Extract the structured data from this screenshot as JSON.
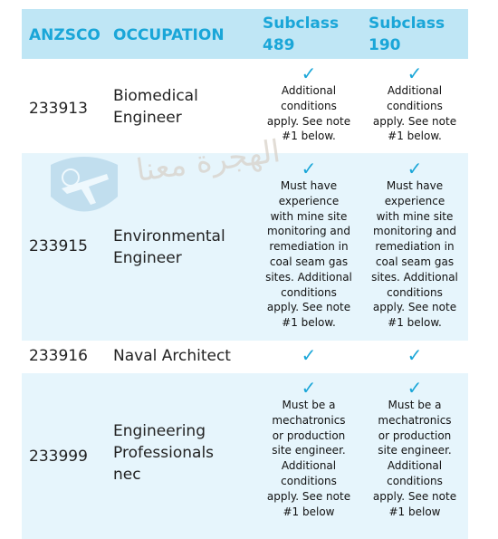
{
  "header": {
    "anzsco": "ANZSCO",
    "occupation": "OCCUPATION",
    "subclass_489_line1": "Subclass",
    "subclass_489_line2": "489",
    "subclass_190_line1": "Subclass",
    "subclass_190_line2": "190"
  },
  "tick_icon": "check-mark",
  "colors": {
    "accent": "#1aa6d8",
    "header_bg": "#bfe6f5",
    "stripe_bg": "#e6f5fc"
  },
  "rows": [
    {
      "code": "233913",
      "occupation_lines": [
        "Biomedical",
        "Engineer"
      ],
      "sub489": [
        "Additional",
        "conditions",
        "apply. See note",
        "#1 below."
      ],
      "sub190": [
        "Additional",
        "conditions",
        "apply. See note",
        "#1 below."
      ]
    },
    {
      "code": "233915",
      "occupation_lines": [
        "Environmental",
        "Engineer"
      ],
      "sub489": [
        "Must have",
        "experience",
        "with mine site",
        "monitoring and",
        "remediation in",
        "coal seam gas",
        "sites. Additional",
        "conditions",
        "apply. See note",
        "#1 below."
      ],
      "sub190": [
        "Must have",
        "experience",
        "with mine site",
        "monitoring and",
        "remediation in",
        "coal seam gas",
        "sites. Additional",
        "conditions",
        "apply. See note",
        "#1 below."
      ]
    },
    {
      "code": "233916",
      "occupation_lines": [
        "Naval Architect"
      ],
      "sub489": [],
      "sub190": []
    },
    {
      "code": "233999",
      "occupation_lines": [
        "Engineering",
        "Professionals",
        "nec"
      ],
      "sub489": [
        "Must be a",
        "mechatronics",
        "or production",
        "site engineer.",
        "Additional",
        "conditions",
        "apply. See note",
        "#1 below"
      ],
      "sub190": [
        "Must be a",
        "mechatronics",
        "or production",
        "site engineer.",
        "Additional",
        "conditions",
        "apply. See note",
        "#1 below"
      ]
    }
  ],
  "watermark": {
    "text": "الهجرة معنا"
  }
}
